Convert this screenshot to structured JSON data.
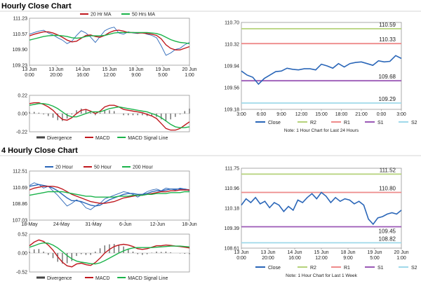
{
  "sections": [
    {
      "title": "Hourly Close Chart"
    },
    {
      "title": "4 Hourly Close Chart"
    }
  ],
  "colors": {
    "price": "#2a66b8",
    "ma_short": "#c0181e",
    "ma_long": "#1bb34a",
    "ma_200": "#1bb34a",
    "r2": "#b5d27a",
    "r1": "#ee8a8a",
    "s1": "#9b59b6",
    "s2": "#9fd9ea",
    "close": "#2a66b8",
    "hist": "#555555"
  },
  "chart_data": [
    {
      "id": "hourly_price",
      "type": "line",
      "legend": [
        "20 Hr MA",
        "50 Hrs MA"
      ],
      "y_ticks": [
        "111.23",
        "110.57",
        "109.90",
        "109.23"
      ],
      "ylim": [
        109.23,
        111.23
      ],
      "x_ticks": [
        [
          "13 Jun",
          "0:00"
        ],
        [
          "13 Jun",
          "20:00"
        ],
        [
          "14 Jun",
          "16:00"
        ],
        [
          "15 Jun",
          "12:00"
        ],
        [
          "18 Jun",
          "9:00"
        ],
        [
          "19 Jun",
          "5:00"
        ],
        [
          "20 Jun",
          "1:00"
        ]
      ],
      "series": [
        {
          "name": "Price",
          "values": [
            110.55,
            110.62,
            110.68,
            110.72,
            110.6,
            110.52,
            110.4,
            110.3,
            110.15,
            110.25,
            110.5,
            110.7,
            110.6,
            110.42,
            110.2,
            110.45,
            110.7,
            110.8,
            110.85,
            110.6,
            110.55,
            110.65,
            110.6,
            110.58,
            110.62,
            110.55,
            110.5,
            110.4,
            110.05,
            109.65,
            109.75,
            109.9,
            109.95,
            110.1,
            110.2
          ]
        },
        {
          "name": "20 Hr MA",
          "values": [
            110.48,
            110.55,
            110.6,
            110.65,
            110.65,
            110.6,
            110.52,
            110.42,
            110.3,
            110.22,
            110.25,
            110.38,
            110.5,
            110.52,
            110.45,
            110.42,
            110.5,
            110.62,
            110.7,
            110.72,
            110.68,
            110.62,
            110.62,
            110.6,
            110.6,
            110.58,
            110.55,
            110.5,
            110.35,
            110.1,
            109.95,
            109.88,
            109.88,
            109.95,
            110.02
          ]
        },
        {
          "name": "50 Hrs MA",
          "values": [
            110.3,
            110.35,
            110.4,
            110.45,
            110.48,
            110.5,
            110.5,
            110.48,
            110.45,
            110.4,
            110.38,
            110.4,
            110.45,
            110.48,
            110.48,
            110.48,
            110.5,
            110.55,
            110.6,
            110.62,
            110.62,
            110.62,
            110.62,
            110.62,
            110.62,
            110.62,
            110.6,
            110.58,
            110.52,
            110.42,
            110.32,
            110.25,
            110.2,
            110.18,
            110.15
          ]
        }
      ]
    },
    {
      "id": "hourly_macd",
      "type": "line",
      "legend": [
        "Divergence",
        "MACD",
        "MACD Signal Line"
      ],
      "y_ticks": [
        "0.22",
        "0.00",
        "-0.22"
      ],
      "ylim": [
        -0.22,
        0.22
      ],
      "x_ticks": [
        [
          "13 Jun",
          "0:00"
        ],
        [
          "13 Jun",
          "20:00"
        ],
        [
          "14 Jun",
          "16:00"
        ],
        [
          "15 Jun",
          "12:00"
        ],
        [
          "18 Jun",
          "9:00"
        ],
        [
          "19 Jun",
          "5:00"
        ],
        [
          "20 Jun",
          "1:00"
        ]
      ],
      "series": [
        {
          "name": "MACD",
          "values": [
            0.12,
            0.13,
            0.13,
            0.11,
            0.08,
            0.04,
            -0.02,
            -0.07,
            -0.08,
            -0.05,
            0.0,
            0.04,
            0.05,
            0.03,
            0.0,
            0.03,
            0.08,
            0.1,
            0.1,
            0.08,
            0.05,
            0.04,
            0.03,
            0.02,
            0.01,
            -0.01,
            -0.03,
            -0.06,
            -0.12,
            -0.18,
            -0.2,
            -0.2,
            -0.18,
            -0.14,
            -0.1
          ]
        },
        {
          "name": "MACD Signal Line",
          "values": [
            0.1,
            0.11,
            0.12,
            0.12,
            0.11,
            0.09,
            0.06,
            0.02,
            -0.02,
            -0.04,
            -0.04,
            -0.02,
            0.0,
            0.02,
            0.02,
            0.02,
            0.04,
            0.06,
            0.07,
            0.08,
            0.07,
            0.06,
            0.05,
            0.04,
            0.03,
            0.02,
            0.0,
            -0.02,
            -0.05,
            -0.09,
            -0.13,
            -0.16,
            -0.17,
            -0.17,
            -0.16
          ]
        },
        {
          "name": "Divergence",
          "values": [
            0.02,
            0.02,
            0.01,
            -0.01,
            -0.03,
            -0.05,
            -0.08,
            -0.09,
            -0.06,
            -0.01,
            0.04,
            0.06,
            0.05,
            0.01,
            -0.02,
            0.01,
            0.04,
            0.04,
            0.03,
            0.0,
            -0.02,
            -0.02,
            -0.02,
            -0.02,
            -0.02,
            -0.03,
            -0.03,
            -0.04,
            -0.07,
            -0.09,
            -0.07,
            -0.04,
            -0.01,
            0.03,
            0.06
          ]
        }
      ]
    },
    {
      "id": "hourly_levels",
      "type": "line",
      "legend": [
        "Close",
        "R2",
        "R1",
        "S1",
        "S2"
      ],
      "note": "Note: 1 Hour Chart for Last 24 Hours",
      "y_ticks": [
        "110.70",
        "110.32",
        "109.94",
        "109.56",
        "109.18"
      ],
      "ylim": [
        109.18,
        110.7
      ],
      "x_ticks": [
        "3:00",
        "6:00",
        "9:00",
        "12:00",
        "15:00",
        "18:00",
        "21:00",
        "0:00",
        "3:00"
      ],
      "levels": [
        {
          "name": "R2",
          "value": 110.59,
          "label": "110.59"
        },
        {
          "name": "R1",
          "value": 110.33,
          "label": "110.33"
        },
        {
          "name": "S1",
          "value": 109.68,
          "label": 109.68
        },
        {
          "name": "S2",
          "value": 109.29,
          "label": "109.29"
        }
      ],
      "close": [
        109.85,
        109.78,
        109.74,
        109.62,
        109.72,
        109.78,
        109.84,
        109.85,
        109.9,
        109.88,
        109.87,
        109.89,
        109.89,
        109.87,
        109.97,
        109.94,
        109.9,
        109.98,
        109.92,
        109.98,
        110.0,
        110.01,
        109.98,
        109.95,
        110.03,
        110.01,
        110.02,
        110.12,
        110.07
      ]
    },
    {
      "id": "4h_price",
      "type": "line",
      "legend": [
        "20 Hour",
        "50 Hour",
        "200 Hour"
      ],
      "y_ticks": [
        "112.51",
        "110.69",
        "108.86",
        "107.03"
      ],
      "ylim": [
        107.03,
        112.51
      ],
      "x_ticks": [
        "18-May",
        "24-May",
        "31-May",
        "6-Jun",
        "12-Jun",
        "18-Jun"
      ],
      "series": [
        {
          "name": "Price",
          "values": [
            110.9,
            111.2,
            111.0,
            110.6,
            110.8,
            110.3,
            109.8,
            109.2,
            108.6,
            108.9,
            109.3,
            109.0,
            108.4,
            108.2,
            108.6,
            108.9,
            109.4,
            109.6,
            109.8,
            110.0,
            110.2,
            110.1,
            109.9,
            109.6,
            109.9,
            110.2,
            110.4,
            110.5,
            110.3,
            110.6,
            110.5,
            110.4,
            110.6,
            110.5,
            110.3
          ]
        },
        {
          "name": "20 Hour",
          "values": [
            110.8,
            110.9,
            111.0,
            110.9,
            110.8,
            110.6,
            110.3,
            109.9,
            109.5,
            109.2,
            109.2,
            109.1,
            108.9,
            108.7,
            108.6,
            108.7,
            109.0,
            109.3,
            109.5,
            109.7,
            109.9,
            110.0,
            110.0,
            109.9,
            109.9,
            110.0,
            110.2,
            110.3,
            110.3,
            110.4,
            110.5,
            110.5,
            110.5,
            110.5,
            110.4
          ]
        },
        {
          "name": "50 Hour",
          "values": [
            110.4,
            110.6,
            110.7,
            110.8,
            110.8,
            110.8,
            110.7,
            110.5,
            110.2,
            109.9,
            109.7,
            109.5,
            109.3,
            109.1,
            109.0,
            108.9,
            108.9,
            109.0,
            109.1,
            109.3,
            109.5,
            109.6,
            109.7,
            109.8,
            109.8,
            109.9,
            110.0,
            110.1,
            110.2,
            110.2,
            110.3,
            110.3,
            110.4,
            110.4,
            110.4
          ]
        },
        {
          "name": "200 Hour",
          "values": [
            109.8,
            109.9,
            110.0,
            110.1,
            110.2,
            110.2,
            110.2,
            110.2,
            110.1,
            110.0,
            109.9,
            109.8,
            109.7,
            109.7,
            109.6,
            109.6,
            109.6,
            109.6,
            109.6,
            109.7,
            109.7,
            109.7,
            109.8,
            109.8,
            109.8,
            109.9,
            109.9,
            110.0,
            110.0,
            110.0,
            110.1,
            110.1,
            110.1,
            110.2,
            110.2
          ]
        }
      ]
    },
    {
      "id": "4h_macd",
      "type": "line",
      "legend": [
        "Divergence",
        "MACD",
        "MACD Signal Line"
      ],
      "y_ticks": [
        "0.52",
        "0.00",
        "-0.52"
      ],
      "ylim": [
        -0.52,
        0.52
      ],
      "x_ticks": [
        "18-May",
        "24-May",
        "31-May",
        "6-Jun",
        "12-Jun",
        "18-Jun"
      ],
      "series": [
        {
          "name": "MACD",
          "values": [
            0.2,
            0.3,
            0.36,
            0.32,
            0.22,
            0.08,
            -0.1,
            -0.25,
            -0.35,
            -0.38,
            -0.3,
            -0.28,
            -0.32,
            -0.34,
            -0.26,
            -0.14,
            0.0,
            0.1,
            0.18,
            0.22,
            0.24,
            0.22,
            0.18,
            0.12,
            0.1,
            0.12,
            0.16,
            0.2,
            0.2,
            0.22,
            0.21,
            0.19,
            0.18,
            0.16,
            0.14
          ]
        },
        {
          "name": "MACD Signal Line",
          "values": [
            0.16,
            0.2,
            0.25,
            0.28,
            0.27,
            0.22,
            0.14,
            0.04,
            -0.07,
            -0.16,
            -0.22,
            -0.25,
            -0.27,
            -0.29,
            -0.3,
            -0.27,
            -0.21,
            -0.14,
            -0.07,
            0.0,
            0.06,
            0.11,
            0.14,
            0.15,
            0.15,
            0.15,
            0.15,
            0.16,
            0.17,
            0.18,
            0.19,
            0.19,
            0.19,
            0.18,
            0.17
          ]
        },
        {
          "name": "Divergence",
          "values": [
            0.04,
            0.1,
            0.11,
            0.04,
            -0.05,
            -0.14,
            -0.24,
            -0.29,
            -0.28,
            -0.22,
            -0.08,
            -0.03,
            -0.05,
            -0.05,
            0.04,
            0.13,
            0.21,
            0.24,
            0.25,
            0.22,
            0.18,
            0.11,
            0.04,
            -0.03,
            -0.05,
            -0.03,
            0.01,
            0.04,
            0.03,
            0.04,
            0.02,
            0.0,
            -0.01,
            -0.02,
            -0.03
          ]
        }
      ]
    },
    {
      "id": "4h_levels",
      "type": "line",
      "legend": [
        "Close",
        "R2",
        "R1",
        "S1",
        "S2"
      ],
      "note": "Note: 1 Hour Chart for Last 1 Week",
      "y_ticks": [
        "111.75",
        "110.96",
        "110.18",
        "109.39",
        "108.61"
      ],
      "ylim": [
        108.61,
        111.75
      ],
      "x_ticks": [
        [
          "13 Jun",
          "0:00"
        ],
        [
          "13 Jun",
          "20:00"
        ],
        [
          "14 Jun",
          "16:00"
        ],
        [
          "15 Jun",
          "12:00"
        ],
        [
          "18 Jun",
          "9:00"
        ],
        [
          "19 Jun",
          "5:00"
        ],
        [
          "20 Jun",
          "1:00"
        ]
      ],
      "levels": [
        {
          "name": "R2",
          "value": 111.52,
          "label": "111.52"
        },
        {
          "name": "R1",
          "value": 110.8,
          "label": "110.80"
        },
        {
          "name": "S1",
          "value": 109.45,
          "label": "109.45"
        },
        {
          "name": "S2",
          "value": 108.82,
          "label": "108.82"
        }
      ],
      "close": [
        110.3,
        110.55,
        110.4,
        110.6,
        110.35,
        110.45,
        110.2,
        110.4,
        110.3,
        110.05,
        110.25,
        110.1,
        110.5,
        110.4,
        110.6,
        110.75,
        110.55,
        110.8,
        110.65,
        110.4,
        110.6,
        110.45,
        110.55,
        110.5,
        110.35,
        110.45,
        110.3,
        109.75,
        109.55,
        109.8,
        109.85,
        109.95,
        110.0,
        109.95,
        110.1
      ]
    }
  ]
}
